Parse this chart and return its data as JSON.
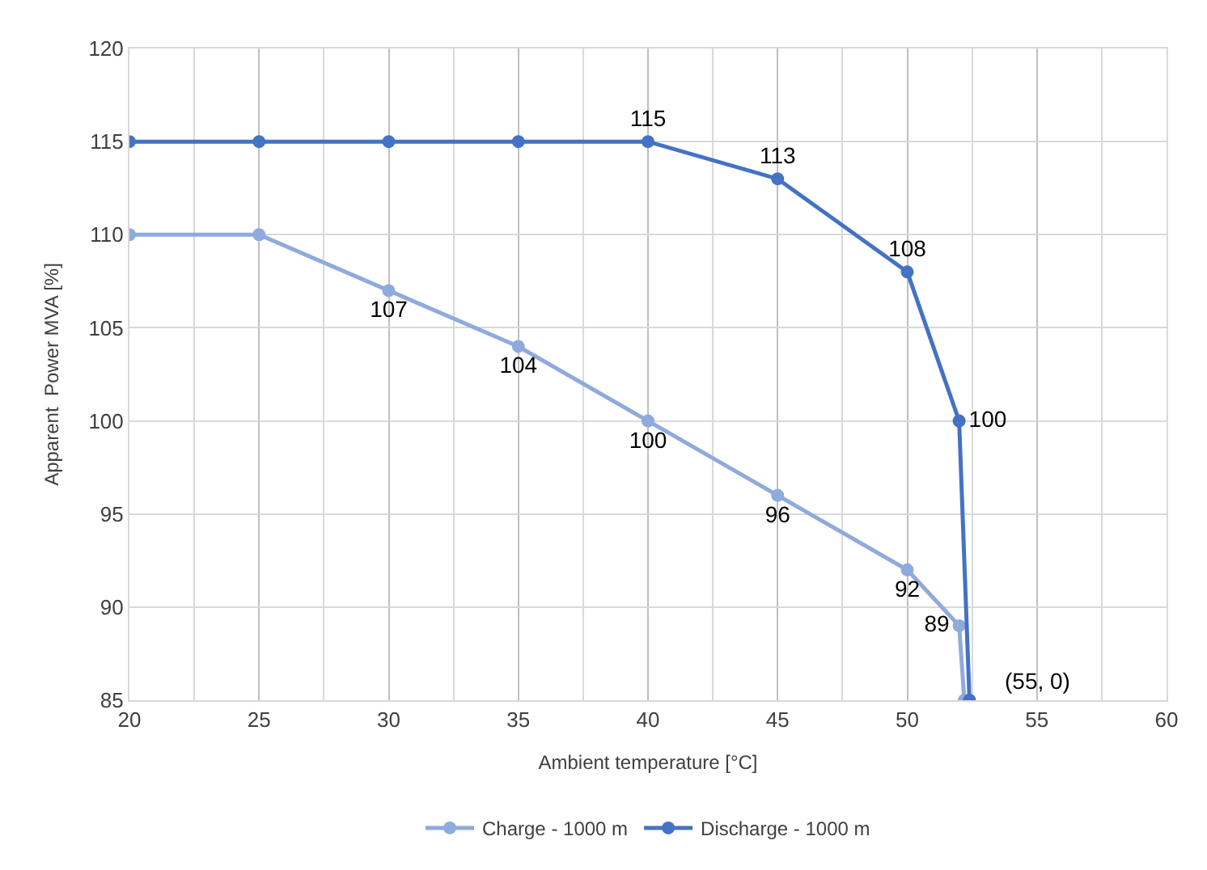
{
  "chart_data": {
    "type": "line",
    "xlabel": "Ambient temperature [°C]",
    "ylabel": "Apparent  Power MVA [%]",
    "series": [
      {
        "name": "Charge - 1000 m",
        "color": "#8faadc",
        "x": [
          20,
          25,
          30,
          35,
          40,
          45,
          50,
          52,
          52.2
        ],
        "values": [
          110,
          110,
          107,
          104,
          100,
          96,
          92,
          89,
          85
        ],
        "value_labels": [
          null,
          null,
          "107",
          "104",
          "100",
          "96",
          "92",
          "89",
          null
        ]
      },
      {
        "name": "Discharge - 1000 m",
        "color": "#4472c4",
        "x": [
          20,
          25,
          30,
          35,
          40,
          45,
          50,
          52,
          52.4
        ],
        "values": [
          115,
          115,
          115,
          115,
          115,
          113,
          108,
          100,
          85
        ],
        "value_labels": [
          null,
          null,
          null,
          null,
          "115",
          "113",
          "108",
          "100",
          null
        ]
      }
    ],
    "annotations": [
      "(55, 0)"
    ],
    "xlim": [
      20,
      60
    ],
    "xticks": [
      20,
      25,
      30,
      35,
      40,
      45,
      50,
      55,
      60
    ],
    "ylim": [
      85,
      120
    ],
    "yticks": [
      85,
      90,
      95,
      100,
      105,
      110,
      115,
      120
    ],
    "grid": true,
    "legend": "bottom",
    "marker": "circle",
    "line_style": "solid"
  }
}
